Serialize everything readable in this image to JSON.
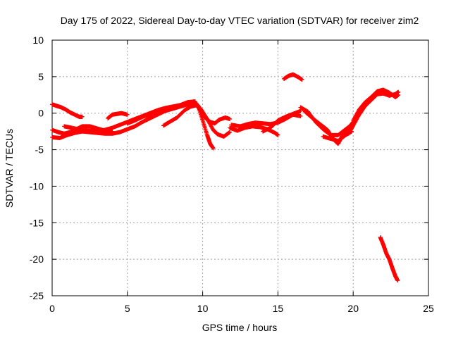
{
  "chart_data": {
    "type": "scatter",
    "title": "Day 175 of 2022, Sidereal Day-to-day VTEC variation (SDTVAR) for receiver zim2",
    "xlabel": "GPS time / hours",
    "ylabel": "SDTVAR / TECUs",
    "xlim": [
      0,
      25
    ],
    "ylim": [
      -25,
      10
    ],
    "xticks": [
      0,
      5,
      10,
      15,
      20,
      25
    ],
    "yticks": [
      -25,
      -20,
      -15,
      -10,
      -5,
      0,
      5,
      10
    ],
    "grid": true,
    "marker": "+",
    "series": [
      {
        "name": "zim2",
        "color": "#ff0000",
        "tracks": [
          [
            [
              0,
              1.2
            ],
            [
              0.3,
              1.0
            ],
            [
              0.6,
              0.8
            ],
            [
              0.9,
              0.5
            ],
            [
              1.2,
              0.1
            ],
            [
              1.5,
              -0.2
            ],
            [
              1.8,
              -0.5
            ],
            [
              2.0,
              -0.5
            ]
          ],
          [
            [
              0,
              -2.3
            ],
            [
              0.4,
              -2.6
            ],
            [
              0.8,
              -2.8
            ],
            [
              1.2,
              -2.6
            ],
            [
              1.6,
              -2.2
            ],
            [
              2.0,
              -1.8
            ],
            [
              2.5,
              -1.8
            ],
            [
              3.0,
              -2.1
            ],
            [
              3.5,
              -2.4
            ],
            [
              4.0,
              -2.5
            ]
          ],
          [
            [
              0,
              -3.3
            ],
            [
              0.5,
              -3.4
            ],
            [
              1.0,
              -3.0
            ],
            [
              1.5,
              -2.7
            ],
            [
              2.0,
              -2.5
            ],
            [
              2.5,
              -2.6
            ],
            [
              3.0,
              -2.7
            ],
            [
              3.5,
              -2.8
            ],
            [
              4.0,
              -2.8
            ],
            [
              4.5,
              -2.6
            ],
            [
              5.0,
              -2.2
            ],
            [
              5.5,
              -1.8
            ],
            [
              6.0,
              -1.2
            ],
            [
              6.5,
              -0.7
            ],
            [
              7.0,
              -0.2
            ],
            [
              7.5,
              0.3
            ],
            [
              8.0,
              0.6
            ],
            [
              8.5,
              0.9
            ],
            [
              9.0,
              1.2
            ],
            [
              9.5,
              1.3
            ]
          ],
          [
            [
              0.8,
              -1.8
            ],
            [
              1.3,
              -2.0
            ],
            [
              2.0,
              -2.3
            ],
            [
              2.5,
              -2.4
            ],
            [
              3.0,
              -2.4
            ],
            [
              3.5,
              -2.3
            ],
            [
              4.0,
              -2.0
            ],
            [
              4.5,
              -1.6
            ],
            [
              5.0,
              -1.2
            ],
            [
              5.5,
              -0.8
            ],
            [
              6.0,
              -0.4
            ],
            [
              6.5,
              0.0
            ],
            [
              7.0,
              0.4
            ],
            [
              7.5,
              0.7
            ],
            [
              8.0,
              0.9
            ],
            [
              8.5,
              1.1
            ],
            [
              9.0,
              1.5
            ],
            [
              9.5,
              1.6
            ]
          ],
          [
            [
              3.7,
              -0.7
            ],
            [
              4.0,
              -0.2
            ],
            [
              4.3,
              -0.1
            ],
            [
              4.6,
              0.0
            ],
            [
              5.0,
              -0.2
            ]
          ],
          [
            [
              5.0,
              -1.4
            ],
            [
              5.5,
              -1.0
            ],
            [
              6.0,
              -0.5
            ],
            [
              6.5,
              -0.2
            ],
            [
              7.0,
              0.2
            ],
            [
              7.5,
              0.4
            ],
            [
              8.0,
              0.7
            ]
          ],
          [
            [
              7.4,
              -1.7
            ],
            [
              7.8,
              -1.2
            ],
            [
              8.3,
              -0.6
            ],
            [
              8.8,
              0.4
            ],
            [
              9.2,
              0.9
            ],
            [
              9.6,
              1.1
            ]
          ],
          [
            [
              9.0,
              1.3
            ],
            [
              9.4,
              1.6
            ],
            [
              9.7,
              1.0
            ],
            [
              10.0,
              -1.0
            ],
            [
              10.3,
              -3.0
            ],
            [
              10.5,
              -4.2
            ],
            [
              10.7,
              -4.8
            ]
          ],
          [
            [
              9.5,
              1.5
            ],
            [
              9.9,
              0.5
            ],
            [
              10.3,
              -0.8
            ],
            [
              10.7,
              -2.3
            ],
            [
              11.0,
              -2.9
            ],
            [
              11.4,
              -3.2
            ],
            [
              11.8,
              -2.6
            ]
          ],
          [
            [
              9.7,
              0.8
            ],
            [
              10.1,
              -0.5
            ],
            [
              10.5,
              -1.2
            ],
            [
              10.8,
              -1.4
            ],
            [
              11.1,
              -0.9
            ],
            [
              11.5,
              -0.6
            ],
            [
              11.8,
              -0.8
            ]
          ],
          [
            [
              11.8,
              -2.0
            ],
            [
              12.3,
              -2.4
            ],
            [
              12.8,
              -2.0
            ],
            [
              13.3,
              -1.8
            ],
            [
              13.8,
              -1.9
            ],
            [
              14.3,
              -2.2
            ],
            [
              14.8,
              -2.7
            ],
            [
              15.0,
              -3.0
            ]
          ],
          [
            [
              11.9,
              -1.6
            ],
            [
              12.5,
              -1.8
            ],
            [
              13.0,
              -1.5
            ],
            [
              13.5,
              -1.3
            ],
            [
              14.0,
              -1.4
            ],
            [
              14.5,
              -1.5
            ],
            [
              15.0,
              -1.3
            ],
            [
              15.5,
              -0.8
            ],
            [
              16.0,
              -0.2
            ],
            [
              16.5,
              -0.4
            ]
          ],
          [
            [
              14.0,
              -2.5
            ],
            [
              14.5,
              -2.0
            ],
            [
              15.0,
              -1.0
            ],
            [
              15.5,
              -0.5
            ],
            [
              16.0,
              -0.1
            ],
            [
              16.5,
              0.3
            ]
          ],
          [
            [
              15.4,
              4.7
            ],
            [
              15.7,
              5.1
            ],
            [
              16.0,
              5.3
            ],
            [
              16.3,
              5.0
            ],
            [
              16.6,
              4.6
            ]
          ],
          [
            [
              16.5,
              0.8
            ],
            [
              17.0,
              0.2
            ],
            [
              17.5,
              -1.2
            ],
            [
              18.0,
              -2.2
            ],
            [
              18.5,
              -3.0
            ],
            [
              19.0,
              -3.0
            ],
            [
              19.5,
              -2.2
            ],
            [
              20.0,
              -1.4
            ]
          ],
          [
            [
              16.8,
              0.2
            ],
            [
              17.3,
              -0.7
            ],
            [
              17.8,
              -1.5
            ],
            [
              18.3,
              -2.3
            ],
            [
              18.7,
              -3.6
            ],
            [
              19.0,
              -4.2
            ],
            [
              19.3,
              -3.0
            ],
            [
              19.7,
              -2.0
            ],
            [
              20.0,
              -1.2
            ]
          ],
          [
            [
              18.0,
              -3.2
            ],
            [
              18.5,
              -3.5
            ],
            [
              19.0,
              -3.8
            ],
            [
              19.5,
              -3.0
            ],
            [
              19.9,
              -2.5
            ]
          ],
          [
            [
              19.7,
              -2.8
            ],
            [
              20.0,
              -1.7
            ],
            [
              20.4,
              -0.2
            ],
            [
              20.8,
              1.0
            ],
            [
              21.2,
              1.8
            ],
            [
              21.6,
              2.6
            ],
            [
              22.0,
              2.7
            ],
            [
              22.4,
              2.4
            ],
            [
              22.8,
              2.6
            ],
            [
              23.0,
              2.9
            ]
          ],
          [
            [
              20.0,
              -1.0
            ],
            [
              20.4,
              0.5
            ],
            [
              20.8,
              1.5
            ],
            [
              21.2,
              2.2
            ],
            [
              21.6,
              3.0
            ],
            [
              22.0,
              3.2
            ],
            [
              22.4,
              2.8
            ],
            [
              22.8,
              2.2
            ],
            [
              23.0,
              2.5
            ]
          ],
          [
            [
              21.8,
              -17.0
            ],
            [
              22.0,
              -18.0
            ],
            [
              22.2,
              -19.2
            ],
            [
              22.4,
              -20.0
            ],
            [
              22.6,
              -21.2
            ],
            [
              22.8,
              -22.3
            ],
            [
              22.95,
              -22.9
            ]
          ]
        ]
      }
    ]
  }
}
